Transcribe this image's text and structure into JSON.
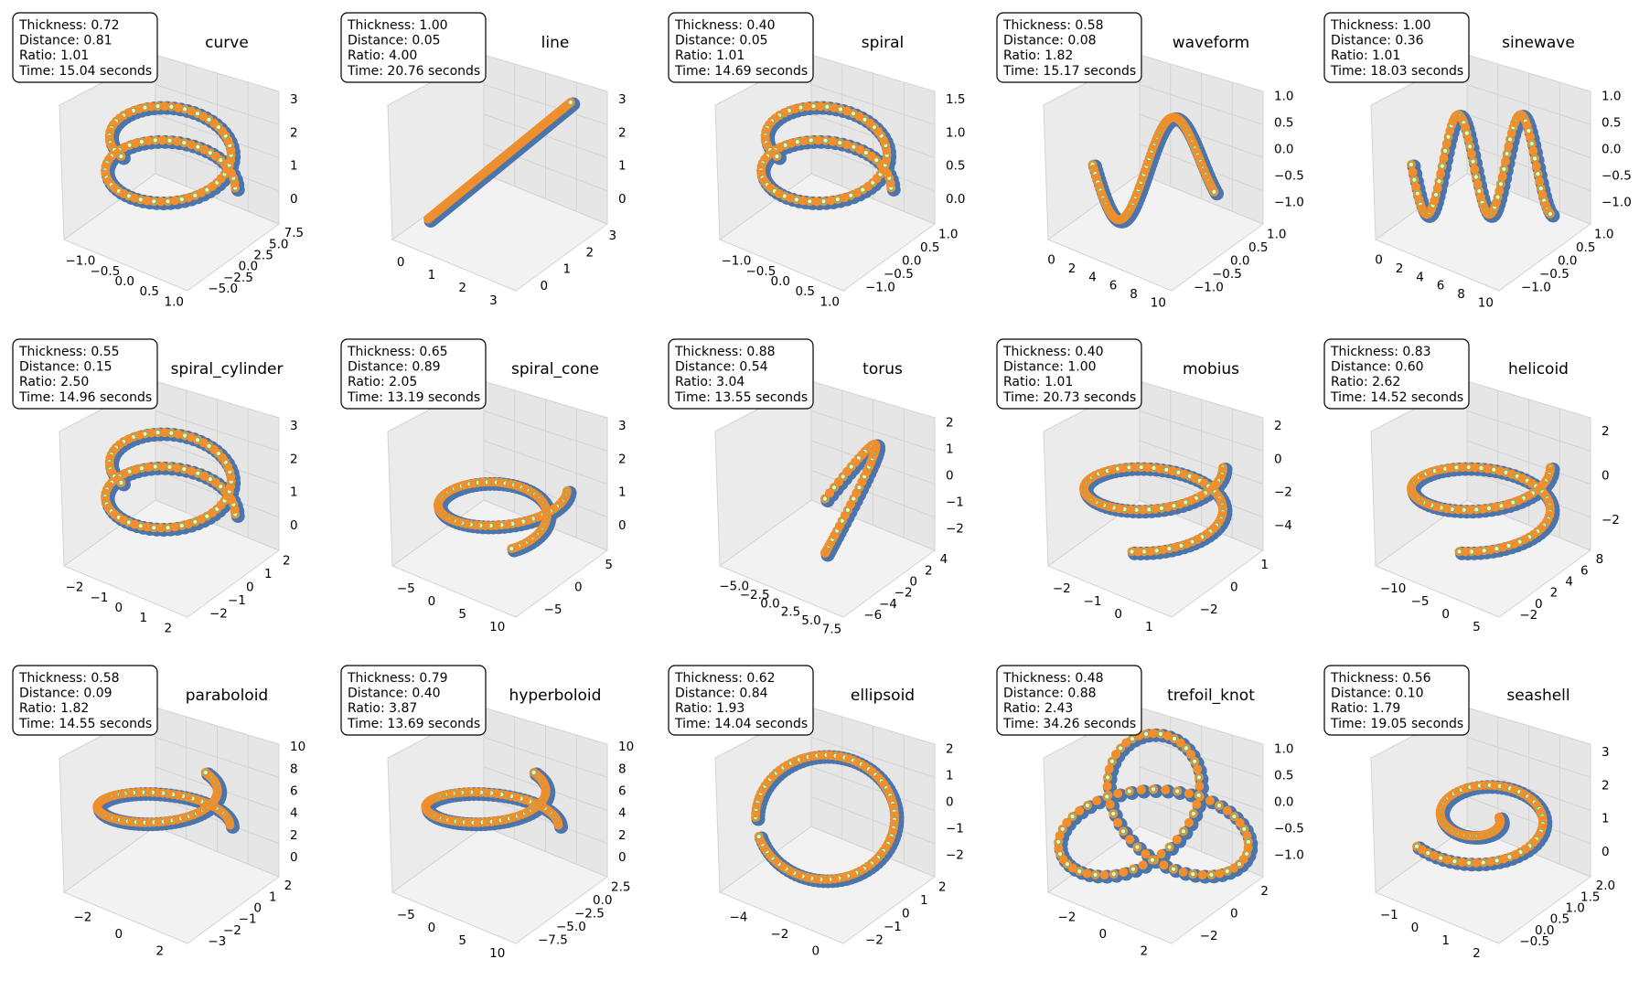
{
  "figure": {
    "rows": 3,
    "cols": 5
  },
  "colors": {
    "thick_points": "#4a75ad",
    "path_points": "#f28e2b",
    "center_marker_face": "#f7f4ae",
    "center_marker_edge": "#5fb88a",
    "pane": "#f2f2f2",
    "grid": "#d3d3d3",
    "box_edge": "#000000"
  },
  "panels": [
    {
      "title": "curve",
      "info": [
        "Thickness: 0.72",
        "Distance: 0.81",
        "Ratio: 1.01",
        "Time: 15.04 seconds"
      ],
      "x_ticks": [
        "−1.0",
        "−0.5",
        "0.0",
        "0.5",
        "1.0"
      ],
      "y_ticks": [
        "−5.0",
        "−2.5",
        "0.0",
        "2.5",
        "5.0",
        "7.5"
      ],
      "z_ticks": [
        "3",
        "2",
        "1",
        "0"
      ]
    },
    {
      "title": "line",
      "info": [
        "Thickness: 1.00",
        "Distance: 0.05",
        "Ratio: 4.00",
        "Time: 20.76 seconds"
      ],
      "x_ticks": [
        "0",
        "1",
        "2",
        "3"
      ],
      "y_ticks": [
        "0",
        "1",
        "2",
        "3"
      ],
      "z_ticks": [
        "3",
        "2",
        "1",
        "0"
      ]
    },
    {
      "title": "spiral",
      "info": [
        "Thickness: 0.40",
        "Distance: 0.05",
        "Ratio: 1.01",
        "Time: 14.69 seconds"
      ],
      "x_ticks": [
        "−1.0",
        "−0.5",
        "0.0",
        "0.5",
        "1.0"
      ],
      "y_ticks": [
        "−1.0",
        "−0.5",
        "0.0",
        "0.5",
        "1.0"
      ],
      "z_ticks": [
        "1.5",
        "1.0",
        "0.5",
        "0.0"
      ]
    },
    {
      "title": "waveform",
      "info": [
        "Thickness: 0.58",
        "Distance: 0.08",
        "Ratio: 1.82",
        "Time: 15.17 seconds"
      ],
      "x_ticks": [
        "0",
        "2",
        "4",
        "6",
        "8",
        "10"
      ],
      "y_ticks": [
        "−1.0",
        "−0.5",
        "0.0",
        "0.5",
        "1.0"
      ],
      "z_ticks": [
        "1.0",
        "0.5",
        "0.0",
        "−0.5",
        "−1.0"
      ]
    },
    {
      "title": "sinewave",
      "info": [
        "Thickness: 1.00",
        "Distance: 0.36",
        "Ratio: 1.01",
        "Time: 18.03 seconds"
      ],
      "x_ticks": [
        "0",
        "2",
        "4",
        "6",
        "8",
        "10"
      ],
      "y_ticks": [
        "−1.0",
        "−0.5",
        "0.0",
        "0.5",
        "1.0"
      ],
      "z_ticks": [
        "1.0",
        "0.5",
        "0.0",
        "−0.5",
        "−1.0"
      ]
    },
    {
      "title": "spiral_cylinder",
      "info": [
        "Thickness: 0.55",
        "Distance: 0.15",
        "Ratio: 2.50",
        "Time: 14.96 seconds"
      ],
      "x_ticks": [
        "−2",
        "−1",
        "0",
        "1",
        "2"
      ],
      "y_ticks": [
        "−2",
        "−1",
        "0",
        "1",
        "2"
      ],
      "z_ticks": [
        "3",
        "2",
        "1",
        "0"
      ]
    },
    {
      "title": "spiral_cone",
      "info": [
        "Thickness: 0.65",
        "Distance: 0.89",
        "Ratio: 2.05",
        "Time: 13.19 seconds"
      ],
      "x_ticks": [
        "−5",
        "0",
        "5",
        "10"
      ],
      "y_ticks": [
        "−5",
        "0",
        "5"
      ],
      "z_ticks": [
        "3",
        "2",
        "1",
        "0"
      ]
    },
    {
      "title": "torus",
      "info": [
        "Thickness: 0.88",
        "Distance: 0.54",
        "Ratio: 3.04",
        "Time: 13.55 seconds"
      ],
      "x_ticks": [
        "−5.0",
        "−2.5",
        "0.0",
        "2.5",
        "5.0",
        "7.5"
      ],
      "y_ticks": [
        "−6",
        "−4",
        "−2",
        "0",
        "2",
        "4"
      ],
      "z_ticks": [
        "2",
        "1",
        "0",
        "−1",
        "−2"
      ]
    },
    {
      "title": "mobius",
      "info": [
        "Thickness: 0.40",
        "Distance: 1.00",
        "Ratio: 1.01",
        "Time: 20.73 seconds"
      ],
      "x_ticks": [
        "−2",
        "−1",
        "0",
        "1"
      ],
      "y_ticks": [
        "−2",
        "0",
        "1"
      ],
      "z_ticks": [
        "2",
        "0",
        "−2",
        "−4"
      ]
    },
    {
      "title": "helicoid",
      "info": [
        "Thickness: 0.83",
        "Distance: 0.60",
        "Ratio: 2.62",
        "Time: 14.52 seconds"
      ],
      "x_ticks": [
        "−10",
        "−5",
        "0",
        "5"
      ],
      "y_ticks": [
        "−2",
        "0",
        "2",
        "4",
        "6",
        "8"
      ],
      "z_ticks": [
        "2",
        "0",
        "−2"
      ]
    },
    {
      "title": "paraboloid",
      "info": [
        "Thickness: 0.58",
        "Distance: 0.09",
        "Ratio: 1.82",
        "Time: 14.55 seconds"
      ],
      "x_ticks": [
        "−2",
        "0",
        "2"
      ],
      "y_ticks": [
        "−3",
        "−2",
        "−1",
        "0",
        "1",
        "2"
      ],
      "z_ticks": [
        "10",
        "8",
        "6",
        "4",
        "2",
        "0"
      ]
    },
    {
      "title": "hyperboloid",
      "info": [
        "Thickness: 0.79",
        "Distance: 0.40",
        "Ratio: 3.87",
        "Time: 13.69 seconds"
      ],
      "x_ticks": [
        "−5",
        "0",
        "5",
        "10"
      ],
      "y_ticks": [
        "−7.5",
        "−5.0",
        "−2.5",
        "0.0",
        "2.5"
      ],
      "z_ticks": [
        "10",
        "8",
        "6",
        "4",
        "2",
        "0"
      ]
    },
    {
      "title": "ellipsoid",
      "info": [
        "Thickness: 0.62",
        "Distance: 0.84",
        "Ratio: 1.93",
        "Time: 14.04 seconds"
      ],
      "x_ticks": [
        "−4",
        "−2",
        "0"
      ],
      "y_ticks": [
        "−2",
        "−1",
        "0",
        "1",
        "2"
      ],
      "z_ticks": [
        "2",
        "1",
        "0",
        "−1",
        "−2"
      ]
    },
    {
      "title": "trefoil_knot",
      "info": [
        "Thickness: 0.48",
        "Distance: 0.88",
        "Ratio: 2.43",
        "Time: 34.26 seconds"
      ],
      "x_ticks": [
        "−2",
        "0",
        "2"
      ],
      "y_ticks": [
        "−2",
        "0",
        "2"
      ],
      "z_ticks": [
        "1.0",
        "0.5",
        "0.0",
        "−0.5",
        "−1.0"
      ]
    },
    {
      "title": "seashell",
      "info": [
        "Thickness: 0.56",
        "Distance: 0.10",
        "Ratio: 1.79",
        "Time: 19.05 seconds"
      ],
      "x_ticks": [
        "−1",
        "0",
        "1",
        "2"
      ],
      "y_ticks": [
        "−0.5",
        "0.0",
        "0.5",
        "1.0",
        "1.5",
        "2.0"
      ],
      "z_ticks": [
        "3",
        "2",
        "1",
        "0"
      ]
    }
  ],
  "chart_data": {
    "type": "scatter",
    "layout": "3x5 grid of 3D scatter plots",
    "series_markers": [
      "thick points (steel blue)",
      "path points (orange)",
      "center points (pale yellow, green edge)"
    ],
    "plots": [
      {
        "title": "curve",
        "thickness": 0.72,
        "distance": 0.81,
        "ratio": 1.01,
        "time_seconds": 15.04,
        "xlim": [
          -1.2,
          1.2
        ],
        "ylim": [
          -5,
          7.5
        ],
        "zlim": [
          0,
          3.5
        ]
      },
      {
        "title": "line",
        "thickness": 1.0,
        "distance": 0.05,
        "ratio": 4.0,
        "time_seconds": 20.76,
        "xlim": [
          0,
          3
        ],
        "ylim": [
          0,
          3
        ],
        "zlim": [
          0,
          3
        ]
      },
      {
        "title": "spiral",
        "thickness": 0.4,
        "distance": 0.05,
        "ratio": 1.01,
        "time_seconds": 14.69,
        "xlim": [
          -1,
          1
        ],
        "ylim": [
          -1,
          1
        ],
        "zlim": [
          0,
          1.8
        ]
      },
      {
        "title": "waveform",
        "thickness": 0.58,
        "distance": 0.08,
        "ratio": 1.82,
        "time_seconds": 15.17,
        "xlim": [
          0,
          10
        ],
        "ylim": [
          -1,
          1
        ],
        "zlim": [
          -1,
          1
        ]
      },
      {
        "title": "sinewave",
        "thickness": 1.0,
        "distance": 0.36,
        "ratio": 1.01,
        "time_seconds": 18.03,
        "xlim": [
          0,
          10
        ],
        "ylim": [
          -1,
          1
        ],
        "zlim": [
          -1,
          1
        ]
      },
      {
        "title": "spiral_cylinder",
        "thickness": 0.55,
        "distance": 0.15,
        "ratio": 2.5,
        "time_seconds": 14.96,
        "xlim": [
          -2,
          2
        ],
        "ylim": [
          -2,
          2
        ],
        "zlim": [
          0,
          3.5
        ]
      },
      {
        "title": "spiral_cone",
        "thickness": 0.65,
        "distance": 0.89,
        "ratio": 2.05,
        "time_seconds": 13.19,
        "xlim": [
          -7,
          10
        ],
        "ylim": [
          -6,
          8
        ],
        "zlim": [
          0,
          3.5
        ]
      },
      {
        "title": "torus",
        "thickness": 0.88,
        "distance": 0.54,
        "ratio": 3.04,
        "time_seconds": 13.55,
        "xlim": [
          -6,
          8
        ],
        "ylim": [
          -7,
          5
        ],
        "zlim": [
          -2,
          2
        ]
      },
      {
        "title": "mobius",
        "thickness": 0.4,
        "distance": 1.0,
        "ratio": 1.01,
        "time_seconds": 20.73,
        "xlim": [
          -2.5,
          1.5
        ],
        "ylim": [
          -2.5,
          2
        ],
        "zlim": [
          -5,
          2
        ]
      },
      {
        "title": "helicoid",
        "thickness": 0.83,
        "distance": 0.6,
        "ratio": 2.62,
        "time_seconds": 14.52,
        "xlim": [
          -12,
          6
        ],
        "ylim": [
          -3,
          9
        ],
        "zlim": [
          -3,
          3
        ]
      },
      {
        "title": "paraboloid",
        "thickness": 0.58,
        "distance": 0.09,
        "ratio": 1.82,
        "time_seconds": 14.55,
        "xlim": [
          -3,
          3
        ],
        "ylim": [
          -3,
          2
        ],
        "zlim": [
          0,
          10
        ]
      },
      {
        "title": "hyperboloid",
        "thickness": 0.79,
        "distance": 0.4,
        "ratio": 3.87,
        "time_seconds": 13.69,
        "xlim": [
          -7,
          10
        ],
        "ylim": [
          -8,
          4
        ],
        "zlim": [
          0,
          10
        ]
      },
      {
        "title": "ellipsoid",
        "thickness": 0.62,
        "distance": 0.84,
        "ratio": 1.93,
        "time_seconds": 14.04,
        "xlim": [
          -5,
          1.5
        ],
        "ylim": [
          -2.5,
          2.5
        ],
        "zlim": [
          -2.5,
          2.5
        ]
      },
      {
        "title": "trefoil_knot",
        "thickness": 0.48,
        "distance": 0.88,
        "ratio": 2.43,
        "time_seconds": 34.26,
        "xlim": [
          -3,
          3
        ],
        "ylim": [
          -3,
          3
        ],
        "zlim": [
          -1.2,
          1.2
        ]
      },
      {
        "title": "seashell",
        "thickness": 0.56,
        "distance": 0.1,
        "ratio": 1.79,
        "time_seconds": 19.05,
        "xlim": [
          -1.5,
          2.5
        ],
        "ylim": [
          -0.7,
          2.2
        ],
        "zlim": [
          -0.3,
          3.5
        ]
      }
    ]
  }
}
